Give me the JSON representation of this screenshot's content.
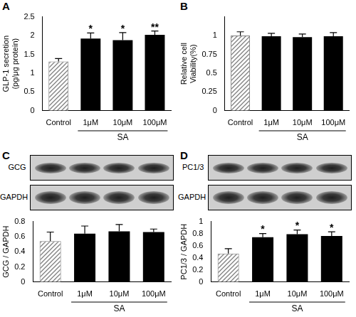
{
  "chart_data": [
    {
      "panel": "A",
      "type": "bar",
      "y_label": [
        "GLP-1 secretion",
        "(pg/μg protein)"
      ],
      "categories": [
        "Control",
        "1μM",
        "10μM",
        "100μM"
      ],
      "values": [
        1.31,
        1.92,
        1.88,
        2.02
      ],
      "errors": [
        0.08,
        0.15,
        0.2,
        0.1
      ],
      "significance": [
        null,
        "*",
        "*",
        "**"
      ],
      "colors": [
        "#7f7f7f",
        "#000000",
        "#000000",
        "#000000"
      ],
      "group": {
        "label": "SA",
        "categories": [
          "1μM",
          "10μM",
          "100μM"
        ]
      },
      "ylim": [
        0,
        2.5
      ],
      "yticks": [
        0,
        0.5,
        1,
        1.5,
        2,
        2.5
      ],
      "grid": false
    },
    {
      "panel": "B",
      "type": "bar",
      "y_label": [
        "Relative cell",
        "Viability(%)"
      ],
      "categories": [
        "Control",
        "1μM",
        "10μM",
        "100μM"
      ],
      "values": [
        1.0,
        0.99,
        0.98,
        0.99
      ],
      "errors": [
        0.05,
        0.04,
        0.04,
        0.05
      ],
      "colors": [
        "#7f7f7f",
        "#000000",
        "#000000",
        "#000000"
      ],
      "group": {
        "label": "SA",
        "categories": [
          "1μM",
          "10μM",
          "100μM"
        ]
      },
      "ylim": [
        0,
        1.25
      ],
      "yticks": [
        0,
        0.25,
        0.5,
        0.75,
        1
      ],
      "grid": false
    },
    {
      "panel": "C",
      "type": "bar",
      "y_label": "GCG / GAPDH",
      "blot_labels": [
        "GCG",
        "GAPDH"
      ],
      "categories": [
        "Control",
        "1μM",
        "10μM",
        "100μM"
      ],
      "values": [
        0.54,
        0.64,
        0.67,
        0.66
      ],
      "errors": [
        0.12,
        0.1,
        0.09,
        0.04
      ],
      "colors": [
        "#7f7f7f",
        "#000000",
        "#000000",
        "#000000"
      ],
      "group": {
        "label": "SA",
        "categories": [
          "1μM",
          "10μM",
          "100μM"
        ]
      },
      "ylim": [
        0,
        0.8
      ],
      "yticks": [
        0,
        0.2,
        0.4,
        0.6,
        0.8
      ],
      "grid": false
    },
    {
      "panel": "D",
      "type": "bar",
      "y_label": "PC1/3 / GAPDH",
      "blot_labels": [
        "PC1/3",
        "GAPDH"
      ],
      "categories": [
        "Control",
        "1μM",
        "10μM",
        "100μM"
      ],
      "values": [
        0.47,
        0.74,
        0.79,
        0.76
      ],
      "errors": [
        0.08,
        0.06,
        0.07,
        0.07
      ],
      "significance": [
        null,
        "*",
        "*",
        "*"
      ],
      "colors": [
        "#7f7f7f",
        "#000000",
        "#000000",
        "#000000"
      ],
      "group": {
        "label": "SA",
        "categories": [
          "1μM",
          "10μM",
          "100μM"
        ]
      },
      "ylim": [
        0,
        1
      ],
      "yticks": [
        0,
        0.2,
        0.4,
        0.6,
        0.8,
        1
      ],
      "grid": false
    }
  ]
}
